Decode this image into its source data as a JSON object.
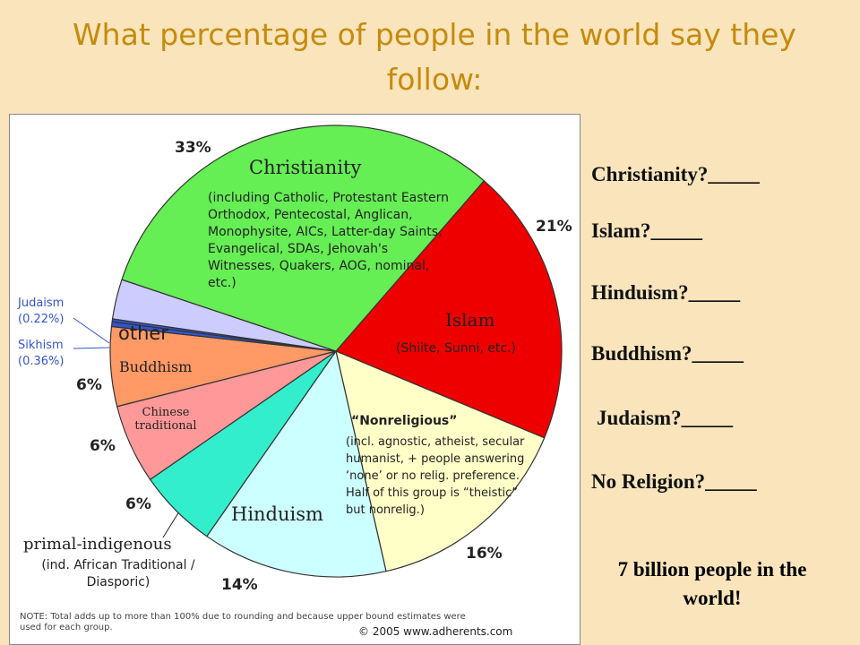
{
  "slide": {
    "title": "What percentage of people in the world say they follow:",
    "questions": [
      "Christianity?_____",
      "Islam?_____",
      "Hinduism?_____",
      "Buddhism?_____",
      "Judaism?_____",
      "No Religion?_____"
    ],
    "footer": "7 billion people in the world!"
  },
  "chart_data": {
    "type": "pie",
    "categories": [
      "Christianity",
      "Islam",
      "“Nonreligious”",
      "Hinduism",
      "primal-indigenous",
      "Chinese traditional",
      "Buddhism",
      "Sikhism",
      "Judaism",
      "other"
    ],
    "values": [
      33,
      21,
      16,
      14,
      6,
      6,
      6,
      0.36,
      0.22,
      3
    ],
    "value_labels": [
      "33%",
      "21%",
      "16%",
      "14%",
      "6%",
      "6%",
      "6%",
      "(0.36%)",
      "(0.22%)",
      null
    ],
    "details": [
      "(including Catholic, Protestant Eastern Orthodox, Pentecostal, Anglican, Monophysite, AICs, Latter-day Saints, Evangelical, SDAs, Jehovah's Witnesses, Quakers, AOG, nominal, etc.)",
      "(Shiite, Sunni, etc.)",
      "(incl. agnostic, atheist, secular humanist, + people answering ‘none’ or no relig. preference. Half of this group is “theistic” but nonrelig.)",
      null,
      "(ind. African Traditional / Diasporic)",
      null,
      null,
      null,
      null,
      null
    ],
    "colors": [
      "#66ee55",
      "#ee0000",
      "#ffffc8",
      "#ccffff",
      "#33eecc",
      "#ff9999",
      "#ff9966",
      "#3355cc",
      "#3355cc",
      "#ccccff"
    ],
    "note": "NOTE: Total adds up to more than 100% due to rounding and because upper bound estimates were used for each group.",
    "copyright": "© 2005 www.adherents.com"
  }
}
